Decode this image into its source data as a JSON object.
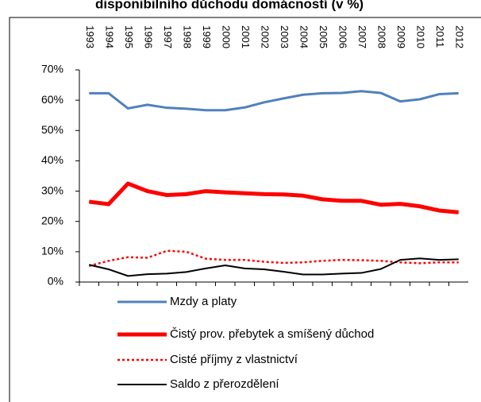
{
  "chart_data": {
    "type": "line",
    "title": "disponibilního důchodu domácností (v %)",
    "categories": [
      "1993",
      "1994",
      "1995",
      "1996",
      "1997",
      "1998",
      "1999",
      "2000",
      "2001",
      "2002",
      "2003",
      "2004",
      "2005",
      "2006",
      "2007",
      "2008",
      "2009",
      "2010",
      "2011",
      "2012"
    ],
    "series": [
      {
        "name": "Mzdy a platy",
        "color": "#4f81bd",
        "width": 3,
        "dash": "solid",
        "values": [
          62.3,
          62.3,
          57.3,
          58.5,
          57.5,
          57.2,
          56.7,
          56.7,
          57.6,
          59.3,
          60.6,
          61.8,
          62.3,
          62.4,
          63,
          62.4,
          59.6,
          60.3,
          62,
          62.3
        ]
      },
      {
        "name": "Čistý prov. přebytek a smíšený důchod",
        "color": "#ff0000",
        "width": 5,
        "dash": "solid",
        "values": [
          26.5,
          25.7,
          32.5,
          30,
          28.7,
          29,
          30,
          29.6,
          29.3,
          29,
          28.9,
          28.5,
          27.3,
          26.8,
          26.8,
          25.5,
          25.8,
          25,
          23.6,
          23
        ]
      },
      {
        "name": "Cisté příjmy z vlastnictví",
        "color": "#ff0000",
        "width": 2.5,
        "dash": "dotted",
        "values": [
          5.3,
          7,
          8.2,
          8,
          10.3,
          10,
          7.7,
          7.3,
          7.3,
          6.7,
          6.3,
          6.5,
          7,
          7.3,
          7.2,
          7,
          6.5,
          6.2,
          6.5,
          6.5
        ]
      },
      {
        "name": "Saldo z přerozdělení",
        "color": "#000000",
        "width": 2,
        "dash": "solid",
        "values": [
          5.7,
          4.2,
          2,
          2.6,
          2.8,
          3.3,
          4.5,
          5.5,
          4.5,
          4.2,
          3.4,
          2.5,
          2.5,
          2.8,
          3,
          4.3,
          7.3,
          7.8,
          7.3,
          7.5
        ]
      }
    ],
    "ylim": [
      0,
      70
    ],
    "yticks": [
      {
        "value": 0,
        "label": "0%"
      },
      {
        "value": 10,
        "label": "10%"
      },
      {
        "value": 20,
        "label": "20%"
      },
      {
        "value": 30,
        "label": "30%"
      },
      {
        "value": 40,
        "label": "40%"
      },
      {
        "value": 50,
        "label": "50%"
      },
      {
        "value": 60,
        "label": "60%"
      },
      {
        "value": 70,
        "label": "70%"
      }
    ],
    "legend": "bottom"
  }
}
